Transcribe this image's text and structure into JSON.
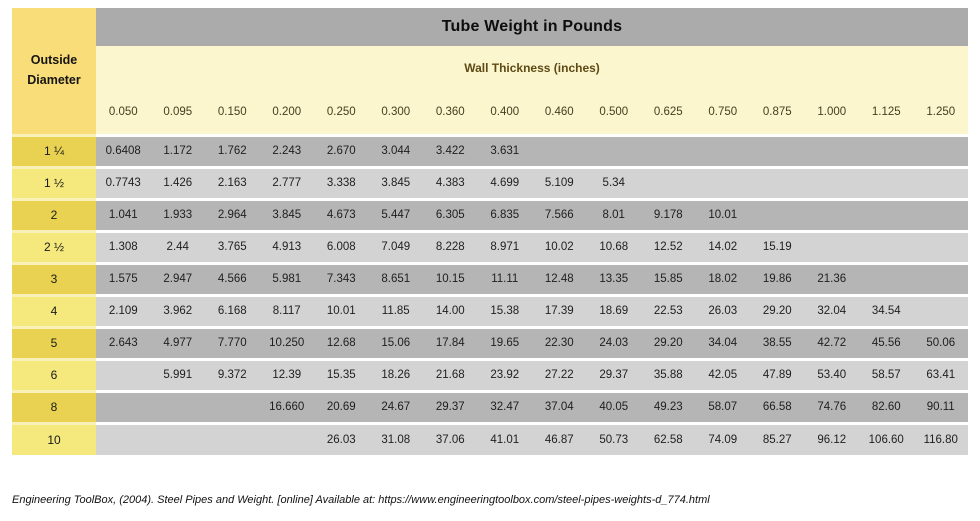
{
  "chart_data": {
    "type": "table",
    "title": "Tube Weight in Pounds",
    "row_group_label": "Outside Diameter",
    "row_group_label_lines": [
      "Outside",
      "Diameter"
    ],
    "col_group_label": "Wall Thickness (inches)",
    "columns": [
      "0.050",
      "0.095",
      "0.150",
      "0.200",
      "0.250",
      "0.300",
      "0.360",
      "0.400",
      "0.460",
      "0.500",
      "0.625",
      "0.750",
      "0.875",
      "1.000",
      "1.125",
      "1.250"
    ],
    "rows": [
      {
        "label": "1 ¼",
        "values": [
          "0.6408",
          "1.172",
          "1.762",
          "2.243",
          "2.670",
          "3.044",
          "3.422",
          "3.631",
          "",
          "",
          "",
          "",
          "",
          "",
          "",
          ""
        ]
      },
      {
        "label": "1 ½",
        "values": [
          "0.7743",
          "1.426",
          "2.163",
          "2.777",
          "3.338",
          "3.845",
          "4.383",
          "4.699",
          "5.109",
          "5.34",
          "",
          "",
          "",
          "",
          "",
          ""
        ]
      },
      {
        "label": "2",
        "values": [
          "1.041",
          "1.933",
          "2.964",
          "3.845",
          "4.673",
          "5.447",
          "6.305",
          "6.835",
          "7.566",
          "8.01",
          "9.178",
          "10.01",
          "",
          "",
          "",
          ""
        ]
      },
      {
        "label": "2 ½",
        "values": [
          "1.308",
          "2.44",
          "3.765",
          "4.913",
          "6.008",
          "7.049",
          "8.228",
          "8.971",
          "10.02",
          "10.68",
          "12.52",
          "14.02",
          "15.19",
          "",
          "",
          ""
        ]
      },
      {
        "label": "3",
        "values": [
          "1.575",
          "2.947",
          "4.566",
          "5.981",
          "7.343",
          "8.651",
          "10.15",
          "11.11",
          "12.48",
          "13.35",
          "15.85",
          "18.02",
          "19.86",
          "21.36",
          "",
          ""
        ]
      },
      {
        "label": "4",
        "values": [
          "2.109",
          "3.962",
          "6.168",
          "8.117",
          "10.01",
          "11.85",
          "14.00",
          "15.38",
          "17.39",
          "18.69",
          "22.53",
          "26.03",
          "29.20",
          "32.04",
          "34.54",
          ""
        ]
      },
      {
        "label": "5",
        "values": [
          "2.643",
          "4.977",
          "7.770",
          "10.250",
          "12.68",
          "15.06",
          "17.84",
          "19.65",
          "22.30",
          "24.03",
          "29.20",
          "34.04",
          "38.55",
          "42.72",
          "45.56",
          "50.06"
        ]
      },
      {
        "label": "6",
        "values": [
          "",
          "5.991",
          "9.372",
          "12.39",
          "15.35",
          "18.26",
          "21.68",
          "23.92",
          "27.22",
          "29.37",
          "35.88",
          "42.05",
          "47.89",
          "53.40",
          "58.57",
          "63.41"
        ]
      },
      {
        "label": "8",
        "values": [
          "",
          "",
          "",
          "16.660",
          "20.69",
          "24.67",
          "29.37",
          "32.47",
          "37.04",
          "40.05",
          "49.23",
          "58.07",
          "66.58",
          "74.76",
          "82.60",
          "90.11"
        ]
      },
      {
        "label": "10",
        "values": [
          "",
          "",
          "",
          "",
          "26.03",
          "31.08",
          "37.06",
          "41.01",
          "46.87",
          "50.73",
          "62.58",
          "74.09",
          "85.27",
          "96.12",
          "106.60",
          "116.80"
        ]
      }
    ],
    "layout": {
      "row_shading": "alternating dark/light starting dark",
      "blank_cells": "shaded same as row, no value"
    }
  },
  "footer": {
    "citation": "Engineering ToolBox, (2004). Steel Pipes and Weight. [online] Available at: https://www.engineeringtoolbox.com/steel-pipes-weights-d_774.html"
  },
  "colors": {
    "title_band": "#ababab",
    "wall_band": "#fbf6ce",
    "corner_cell": "#f8dd78",
    "row_label_dark": "#e9d251",
    "row_label_light": "#f5e97d",
    "data_row_dark": "#b5b5b5",
    "data_row_light": "#d3d3d3",
    "wall_text": "#5e4a14",
    "background": "#ffffff"
  }
}
